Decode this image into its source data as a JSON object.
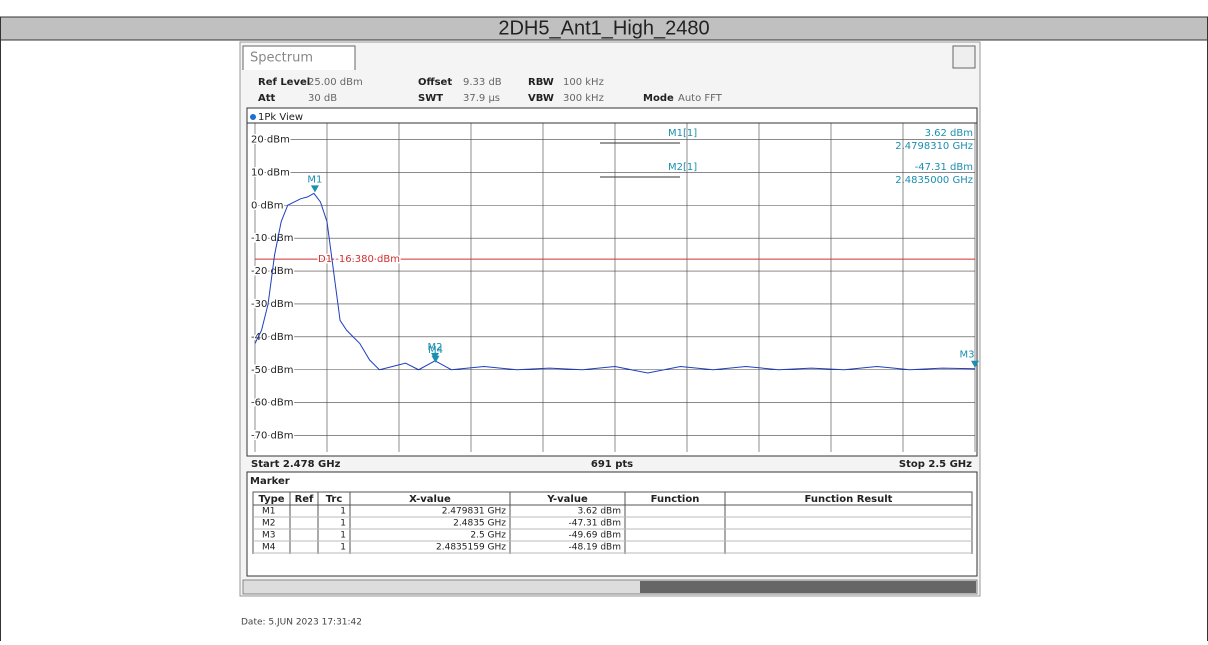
{
  "header": {
    "title": "2DH5_Ant1_High_2480"
  },
  "instrument": {
    "tab": "Spectrum",
    "settings": [
      [
        "Ref Level",
        "25.00 dBm"
      ],
      [
        "Offset",
        "9.33 dB"
      ],
      [
        "RBW",
        "100 kHz"
      ],
      [
        "Att",
        "30 dB"
      ],
      [
        "SWT",
        "37.9 µs"
      ],
      [
        "VBW",
        "300 kHz"
      ],
      [
        "Mode",
        "Auto FFT"
      ]
    ],
    "view": "1Pk View",
    "marker_info": [
      {
        "name": "M1[1]",
        "level": "3.62 dBm",
        "freq": "2.4798310 GHz"
      },
      {
        "name": "M2[1]",
        "level": "-47.31 dBm",
        "freq": "2.4835000 GHz"
      }
    ],
    "start": "Start 2.478 GHz",
    "points": "691 pts",
    "stop": "Stop 2.5 GHz"
  },
  "chart_data": {
    "type": "line",
    "x": [
      2.478,
      2.4782,
      2.4784,
      2.4786,
      2.4788,
      2.479,
      2.4792,
      2.4794,
      2.4796,
      2.4798,
      2.48,
      2.4802,
      2.4804,
      2.4806,
      2.4808,
      2.481,
      2.4812,
      2.4815,
      2.4818,
      2.4822,
      2.4826,
      2.483,
      2.4835,
      2.484,
      2.485,
      2.486,
      2.487,
      2.488,
      2.489,
      2.49,
      2.491,
      2.492,
      2.493,
      2.494,
      2.495,
      2.496,
      2.497,
      2.498,
      2.499,
      2.5
    ],
    "series": [
      {
        "name": "1Pk",
        "color": "#1f3fbf",
        "values": [
          -42,
          -38,
          -30,
          -15,
          -5,
          0,
          1,
          2,
          2.5,
          3.6,
          1,
          -5,
          -20,
          -35,
          -38,
          -40,
          -42,
          -47,
          -50,
          -49,
          -48,
          -50,
          -47.3,
          -50,
          -49,
          -50,
          -49.5,
          -50,
          -49,
          -51,
          -49,
          -50,
          -49,
          -50,
          -49.5,
          -50,
          -49,
          -50,
          -49.5,
          -49.7
        ]
      }
    ],
    "xlim": [
      2.478,
      2.5
    ],
    "xticks": [
      2.478,
      2.4802,
      2.4824,
      2.4846,
      2.4868,
      2.489,
      2.4912,
      2.4934,
      2.4956,
      2.4978,
      2.5
    ],
    "ylim": [
      -75,
      25
    ],
    "yticks": [
      {
        "value": 20,
        "label": "20 dBm"
      },
      {
        "value": 10,
        "label": "10 dBm"
      },
      {
        "value": 0,
        "label": "0 dBm"
      },
      {
        "value": -10,
        "label": "-10 dBm"
      },
      {
        "value": -20,
        "label": "-20 dBm"
      },
      {
        "value": -30,
        "label": "-30 dBm"
      },
      {
        "value": -40,
        "label": "-40 dBm"
      },
      {
        "value": -50,
        "label": "-50 dBm"
      },
      {
        "value": -60,
        "label": "-60 dBm"
      },
      {
        "value": -70,
        "label": "-70 dBm"
      }
    ],
    "grid": true,
    "display_line": {
      "value": -16.38,
      "label": "D1  -16.380 dBm",
      "color": "#d03030"
    },
    "markers": [
      {
        "name": "M1",
        "x": 2.479831,
        "y": 3.62
      },
      {
        "name": "M2",
        "x": 2.4835,
        "y": -47.31
      },
      {
        "name": "M3",
        "x": 2.5,
        "y": -49.69
      },
      {
        "name": "M4",
        "x": 2.4835159,
        "y": -48.19
      }
    ]
  },
  "marker_table": {
    "title": "Marker",
    "columns": [
      "Type",
      "Ref",
      "Trc",
      "X-value",
      "Y-value",
      "Function",
      "Function Result"
    ],
    "rows": [
      [
        "M1",
        "",
        "1",
        "2.479831 GHz",
        "3.62 dBm",
        "",
        ""
      ],
      [
        "M2",
        "",
        "1",
        "2.4835 GHz",
        "-47.31 dBm",
        "",
        ""
      ],
      [
        "M3",
        "",
        "1",
        "2.5 GHz",
        "-49.69 dBm",
        "",
        ""
      ],
      [
        "M4",
        "",
        "1",
        "2.4835159 GHz",
        "-48.19 dBm",
        "",
        ""
      ]
    ]
  },
  "footer": {
    "date": "Date: 5.JUN 2023  17:31:42"
  }
}
